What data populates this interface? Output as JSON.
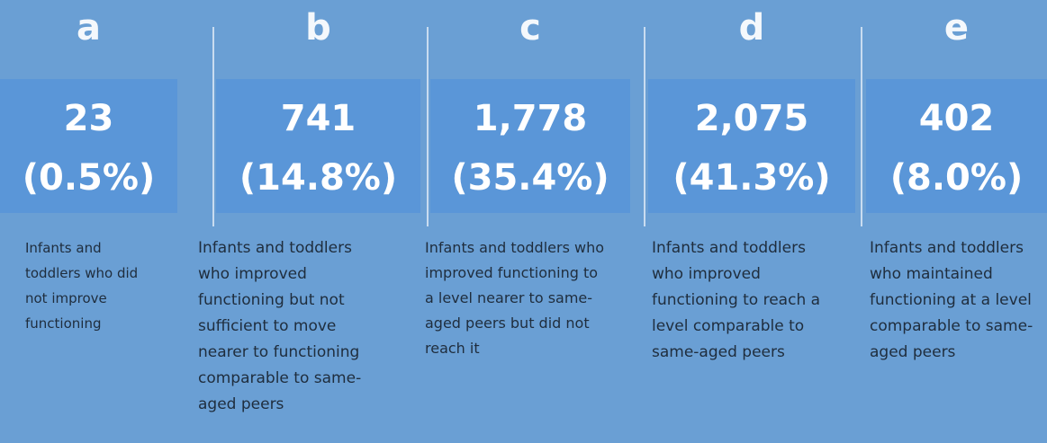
{
  "panels": [
    {
      "letter": "a",
      "count": "23",
      "percent": "(0.5%)",
      "description": "Infants and toddlers who did not improve functioning"
    },
    {
      "letter": "b",
      "count": "741",
      "percent": "(14.8%)",
      "description": "Infants and toddlers who improved functioning but not sufficient to move nearer to functioning comparable to same-aged peers"
    },
    {
      "letter": "c",
      "count": "1,778",
      "percent": "(35.4%)",
      "description": "Infants and toddlers who improved functioning to a level nearer to same-aged peers but did not reach it"
    },
    {
      "letter": "d",
      "count": "2,075",
      "percent": "(41.3%)",
      "description": "Infants and toddlers who improved functioning to reach a level comparable to same-aged peers"
    },
    {
      "letter": "e",
      "count": "402",
      "percent": "(8.0%)",
      "description": "Infants and toddlers who maintained functioning at a level comparable to same-aged peers"
    }
  ]
}
